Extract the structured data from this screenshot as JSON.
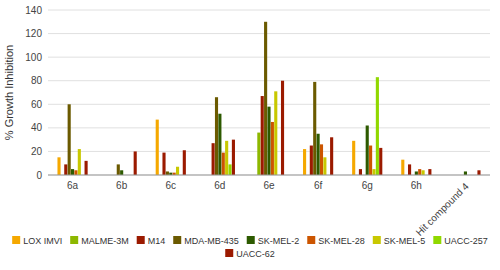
{
  "chart_data": {
    "type": "bar",
    "y_label": "% Growth Inhibition",
    "categories": [
      "6a",
      "6b",
      "6c",
      "6d",
      "6e",
      "6f",
      "6g",
      "6h",
      "Hit compound 4"
    ],
    "series": [
      {
        "name": "LOX IMVI",
        "color": "#f5a800",
        "values": [
          15,
          0,
          47,
          0,
          0,
          22,
          29,
          13,
          0
        ]
      },
      {
        "name": "MALME-3M",
        "color": "#8db800",
        "values": [
          0,
          0,
          0,
          0,
          36,
          0,
          0,
          0,
          0
        ]
      },
      {
        "name": "M14",
        "color": "#9b1a00",
        "values": [
          9,
          0,
          19,
          27,
          67,
          25,
          5,
          9,
          0
        ]
      },
      {
        "name": "MDA-MB-435",
        "color": "#6b5a00",
        "values": [
          60,
          9,
          3,
          66,
          130,
          79,
          0,
          0,
          0
        ]
      },
      {
        "name": "SK-MEL-2",
        "color": "#2d5a00",
        "values": [
          5,
          4,
          2,
          52,
          58,
          35,
          42,
          3,
          3
        ]
      },
      {
        "name": "SK-MEL-28",
        "color": "#cc5500",
        "values": [
          4,
          0,
          2,
          19,
          45,
          26,
          25,
          5,
          0
        ]
      },
      {
        "name": "SK-MEL-5",
        "color": "#c8c800",
        "values": [
          22,
          0,
          7,
          29,
          71,
          15,
          5,
          4,
          0
        ]
      },
      {
        "name": "UACC-257",
        "color": "#90d800",
        "values": [
          0,
          0,
          0,
          9,
          0,
          0,
          83,
          0,
          0
        ]
      },
      {
        "name": "UACC-62",
        "color": "#9b1a00",
        "values": [
          12,
          20,
          21,
          30,
          80,
          32,
          23,
          5,
          4
        ]
      }
    ],
    "ylim": [
      0,
      140
    ],
    "yticks": [
      0,
      20,
      40,
      60,
      80,
      100,
      120,
      140
    ],
    "grid": true,
    "legend": "bottom"
  }
}
